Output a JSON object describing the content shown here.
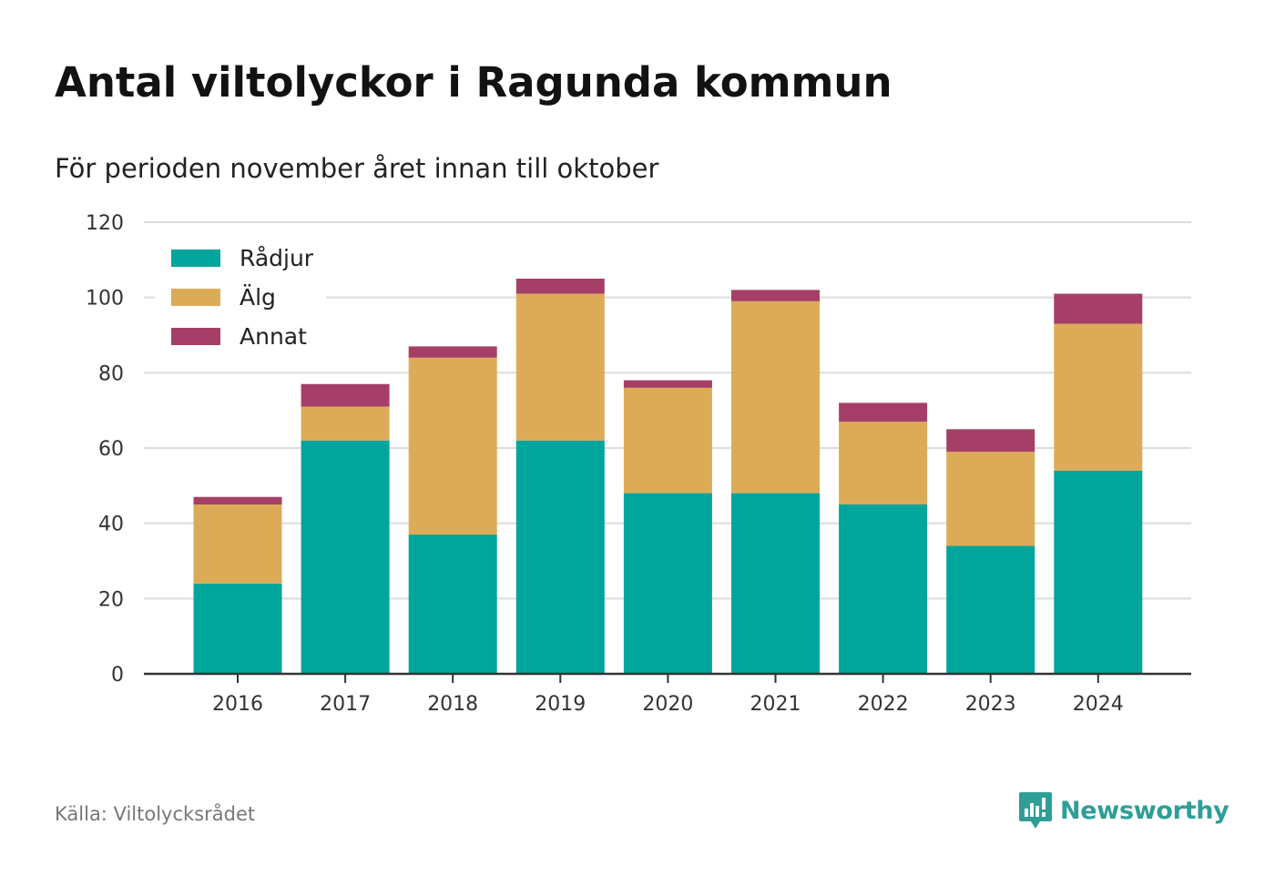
{
  "title": "Antal viltolyckor i Ragunda kommun",
  "subtitle": "För perioden november året innan till oktober",
  "source": "Källa: Viltolycksrådet",
  "brand": {
    "name": "Newsworthy",
    "icon": "newsworthy-logo-icon",
    "color": "#2e9e97"
  },
  "chart_data": {
    "type": "bar",
    "stacked": true,
    "categories": [
      "2016",
      "2017",
      "2018",
      "2019",
      "2020",
      "2021",
      "2022",
      "2023",
      "2024"
    ],
    "series": [
      {
        "name": "Rådjur",
        "color": "#00a59b",
        "values": [
          24,
          62,
          37,
          62,
          48,
          48,
          45,
          34,
          54
        ]
      },
      {
        "name": "Älg",
        "color": "#dbab58",
        "values": [
          21,
          9,
          47,
          39,
          28,
          51,
          22,
          25,
          39
        ]
      },
      {
        "name": "Annat",
        "color": "#a63f67",
        "values": [
          2,
          6,
          3,
          4,
          2,
          3,
          5,
          6,
          8
        ]
      }
    ],
    "title": "Antal viltolyckor i Ragunda kommun",
    "subtitle": "För perioden november året innan till oktober",
    "ylim": [
      0,
      120
    ],
    "yticks": [
      0,
      20,
      40,
      60,
      80,
      100,
      120
    ],
    "ytick_labels": [
      "0",
      "20",
      "40",
      "60",
      "80",
      "100",
      "120"
    ],
    "grid": true,
    "legend": "top-left"
  }
}
